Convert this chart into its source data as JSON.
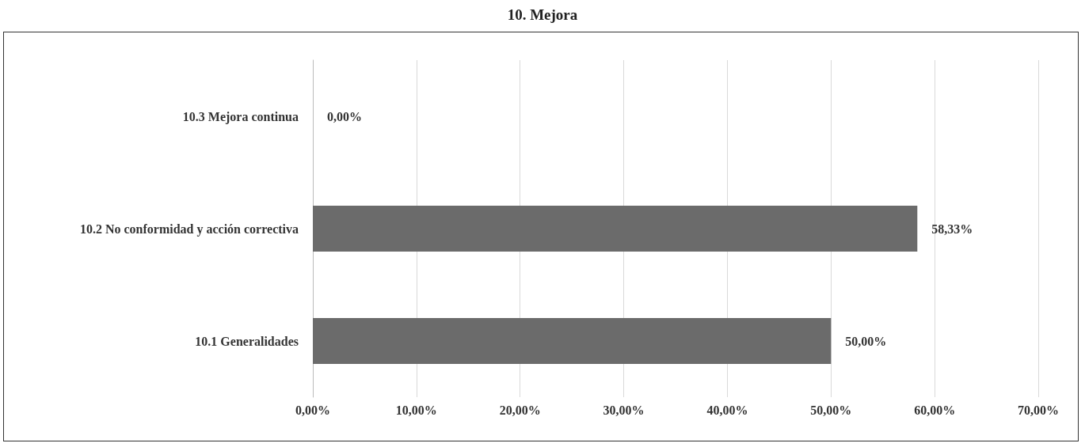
{
  "chart_data": {
    "type": "bar",
    "orientation": "horizontal",
    "title": "10. Mejora",
    "categories": [
      "10.3 Mejora continua",
      "10.2 No conformidad y acción correctiva",
      "10.1 Generalidades"
    ],
    "values": [
      0,
      58.33,
      50
    ],
    "color": "#6b6b6b",
    "value_labels": [
      "0,00%",
      "58,33%",
      "50,00%"
    ],
    "xlim": [
      0,
      70
    ],
    "xticks": [
      {
        "value": 0,
        "label": "0,00%"
      },
      {
        "value": 10,
        "label": "10,00%"
      },
      {
        "value": 20,
        "label": "20,00%"
      },
      {
        "value": 30,
        "label": "30,00%"
      },
      {
        "value": 40,
        "label": "40,00%"
      },
      {
        "value": 50,
        "label": "50,00%"
      },
      {
        "value": 60,
        "label": "60,00%"
      },
      {
        "value": 70,
        "label": "70,00%"
      }
    ],
    "grid": "x"
  }
}
